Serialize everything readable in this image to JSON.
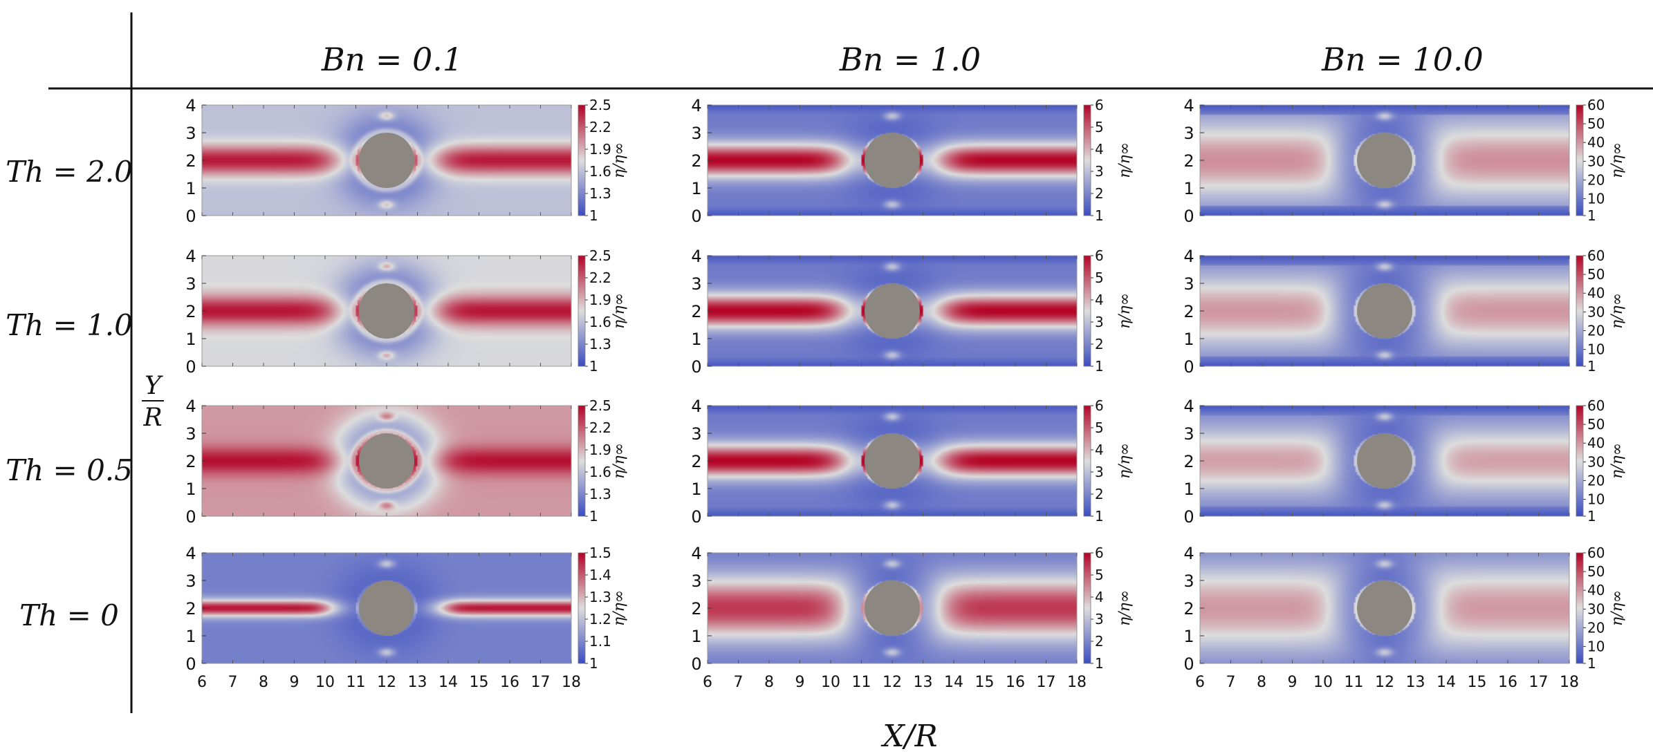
{
  "chart_data": {
    "type": "heatmap",
    "title": "",
    "columns": [
      "Bn = 0.1",
      "Bn = 1.0",
      "Bn = 10.0"
    ],
    "rows": [
      "Th = 2.0",
      "Th = 1.0",
      "Th = 0.5",
      "Th = 0"
    ],
    "xlabel": "X/R",
    "ylabel_top": "Y",
    "ylabel_bottom": "R",
    "colorbar_label": "η/η∞",
    "x_ticks": [
      6,
      7,
      8,
      9,
      10,
      11,
      12,
      13,
      14,
      15,
      16,
      17,
      18
    ],
    "y_ticks": [
      0,
      1,
      2,
      3,
      4
    ],
    "xlim": [
      6,
      18
    ],
    "ylim": [
      0,
      4
    ],
    "cylinder": {
      "center": [
        12,
        2
      ],
      "radius": 1
    },
    "colormap": {
      "low": "#3b4cc0",
      "mid": "#dddddd",
      "high": "#b40426"
    },
    "colorbar_ticks": {
      "Bn = 0.1": {
        "Th = 2.0": [
          "1",
          "1.3",
          "1.6",
          "1.9",
          "2.2",
          "2.5"
        ],
        "Th = 1.0": [
          "1",
          "1.3",
          "1.6",
          "1.9",
          "2.2",
          "2.5"
        ],
        "Th = 0.5": [
          "1",
          "1.3",
          "1.6",
          "1.9",
          "2.2",
          "2.5"
        ],
        "Th = 0": [
          "1",
          "1.1",
          "1.2",
          "1.3",
          "1.4",
          "1.5"
        ]
      },
      "Bn = 1.0": [
        "1",
        "2",
        "3",
        "4",
        "5",
        "6"
      ],
      "Bn = 10.0": [
        "1",
        "10",
        "20",
        "30",
        "40",
        "50",
        "60"
      ]
    },
    "colorbar_ranges": {
      "Bn = 0.1": {
        "Th = 2.0": [
          1,
          2.5
        ],
        "Th = 1.0": [
          1,
          2.5
        ],
        "Th = 0.5": [
          1,
          2.5
        ],
        "Th = 0": [
          1,
          1.5
        ]
      },
      "Bn = 1.0": [
        1,
        6
      ],
      "Bn = 10.0": [
        1,
        60
      ]
    },
    "panels": [
      {
        "row": 0,
        "col": 0,
        "background": 0.4,
        "core": 0.95,
        "core_halfwidth": 0.55,
        "core_reach": 4.5,
        "core_falloff": 1.0,
        "halo": 0.22,
        "wall_band": 0.0
      },
      {
        "row": 0,
        "col": 1,
        "background": 0.16,
        "core": 1.0,
        "core_halfwidth": 0.6,
        "core_reach": 5.0,
        "core_falloff": 1.0,
        "halo": 0.0,
        "wall_band": 0.12
      },
      {
        "row": 0,
        "col": 2,
        "background": 0.17,
        "core": 0.68,
        "core_halfwidth": 1.4,
        "core_reach": 3.8,
        "core_falloff": 1.8,
        "halo": 0.0,
        "wall_band": 0.14
      },
      {
        "row": 1,
        "col": 0,
        "background": 0.48,
        "core": 0.96,
        "core_halfwidth": 0.55,
        "core_reach": 4.6,
        "core_falloff": 1.0,
        "halo": 0.22,
        "wall_band": 0.0
      },
      {
        "row": 1,
        "col": 1,
        "background": 0.16,
        "core": 1.0,
        "core_halfwidth": 0.6,
        "core_reach": 5.0,
        "core_falloff": 1.0,
        "halo": 0.0,
        "wall_band": 0.12
      },
      {
        "row": 1,
        "col": 2,
        "background": 0.17,
        "core": 0.66,
        "core_halfwidth": 1.3,
        "core_reach": 3.7,
        "core_falloff": 1.8,
        "halo": 0.0,
        "wall_band": 0.14
      },
      {
        "row": 2,
        "col": 0,
        "background": 0.66,
        "core": 0.97,
        "core_halfwidth": 0.5,
        "core_reach": 4.8,
        "core_falloff": 1.0,
        "halo": 0.28,
        "wall_band": 0.0
      },
      {
        "row": 2,
        "col": 1,
        "background": 0.16,
        "core": 1.0,
        "core_halfwidth": 0.6,
        "core_reach": 5.1,
        "core_falloff": 1.0,
        "halo": 0.0,
        "wall_band": 0.12
      },
      {
        "row": 2,
        "col": 2,
        "background": 0.17,
        "core": 0.64,
        "core_halfwidth": 1.2,
        "core_reach": 3.7,
        "core_falloff": 1.8,
        "halo": 0.0,
        "wall_band": 0.14
      },
      {
        "row": 3,
        "col": 0,
        "background": 0.18,
        "core": 0.96,
        "core_halfwidth": 0.3,
        "core_reach": 3.5,
        "core_falloff": 1.2,
        "halo": 0.0,
        "wall_band": 0.0
      },
      {
        "row": 3,
        "col": 1,
        "background": 0.16,
        "core": 0.88,
        "core_halfwidth": 1.1,
        "core_reach": 4.2,
        "core_falloff": 1.5,
        "halo": 0.0,
        "wall_band": 0.0
      },
      {
        "row": 3,
        "col": 2,
        "background": 0.14,
        "core": 0.66,
        "core_halfwidth": 1.6,
        "core_reach": 3.9,
        "core_falloff": 2.0,
        "halo": 0.0,
        "wall_band": 0.0
      }
    ]
  }
}
